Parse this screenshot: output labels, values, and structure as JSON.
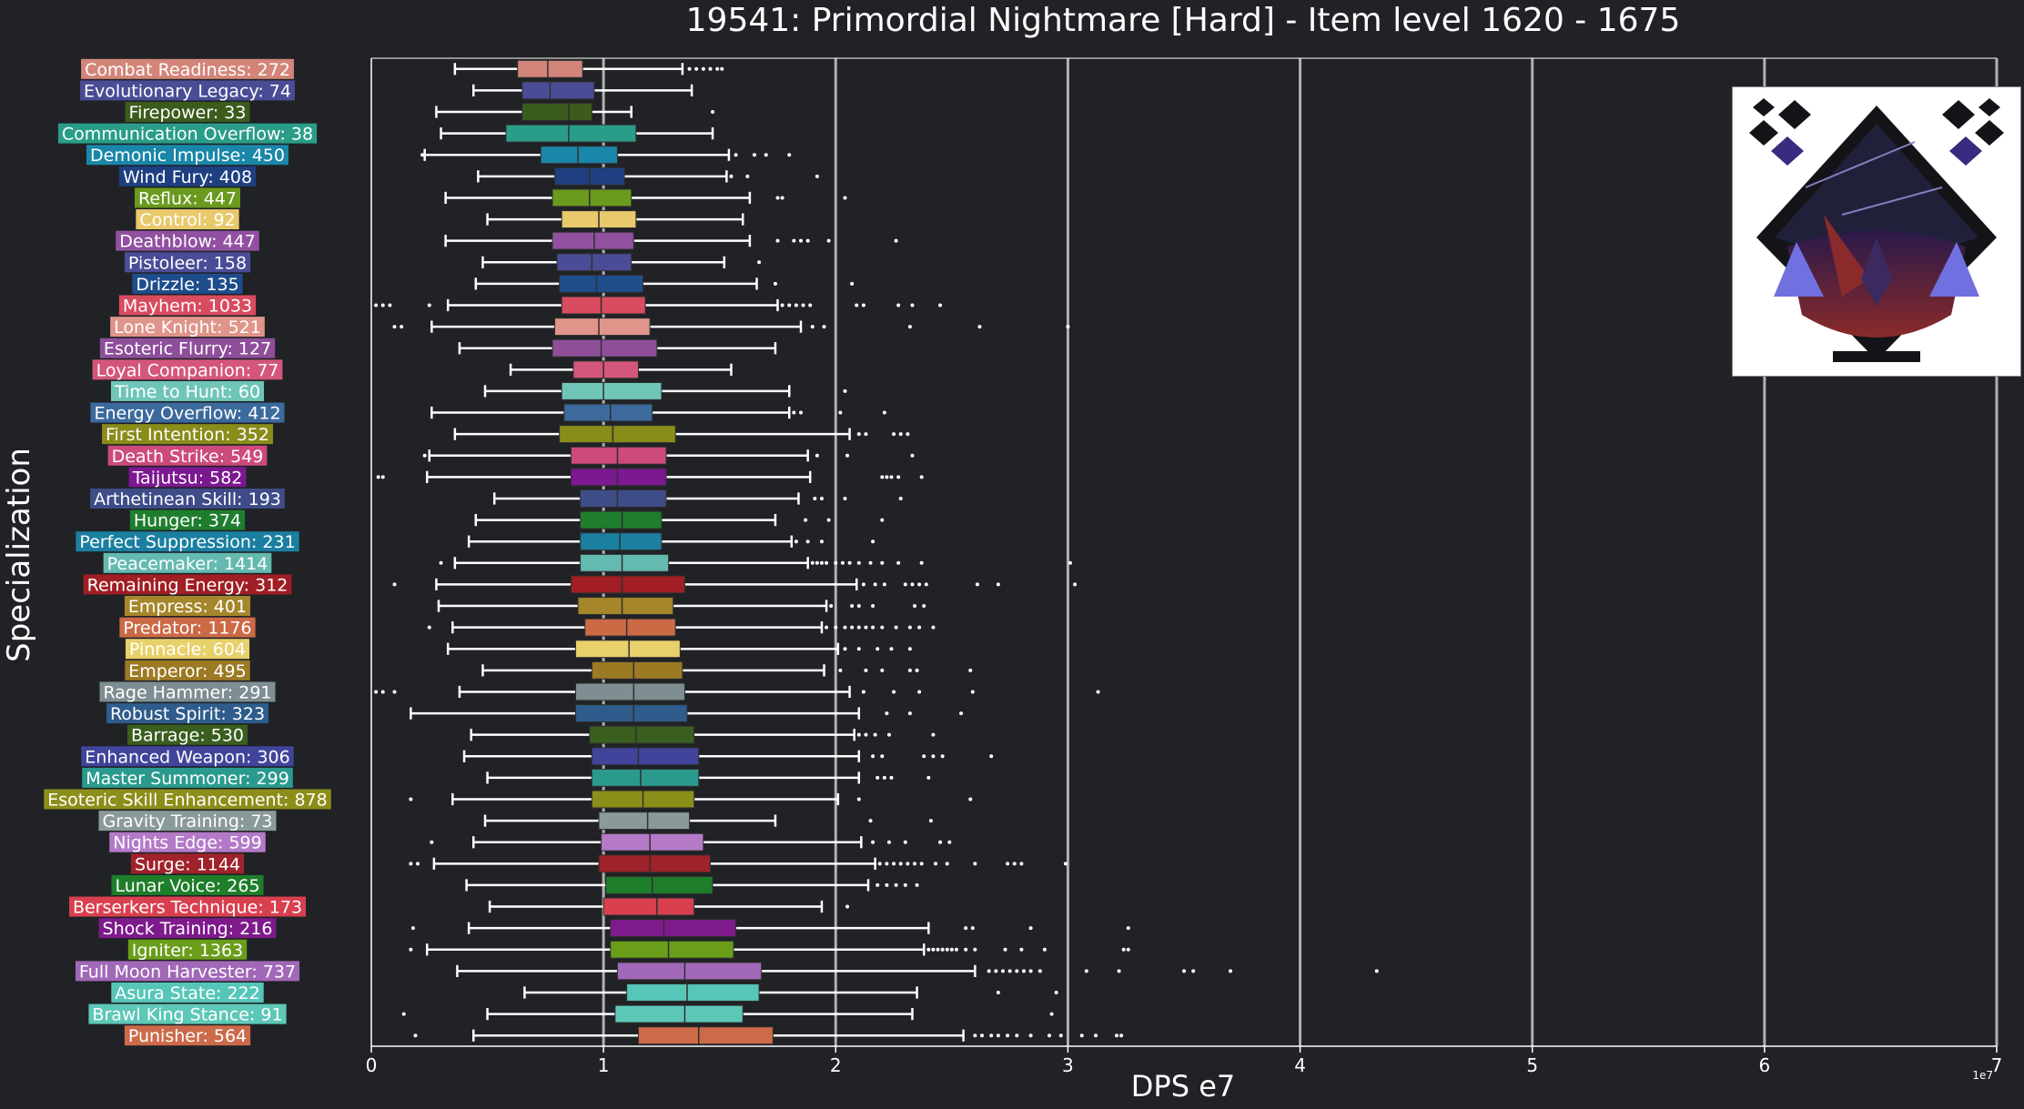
{
  "colors": {
    "background": "#202226",
    "axis": "#ffffff",
    "gridline": "#b0b0b0",
    "box_edge": "#303030",
    "whisker": "#ffffff",
    "median": "#303030"
  },
  "image": {
    "icon": "boss-portrait-icon"
  },
  "chart_data": {
    "type": "boxplot",
    "orientation": "horizontal",
    "title": "19541: Primordial Nightmare [Hard] - Item level 1620 - 1675",
    "xlabel": "DPS e7",
    "ylabel": "Specialization",
    "x_multiplier_label": "1e7",
    "xlim": [
      0,
      7
    ],
    "xticks": [
      "0",
      "1",
      "2",
      "3",
      "4",
      "5",
      "6",
      "7"
    ],
    "grid": "vertical major",
    "legend": "none",
    "series": [
      {
        "label": "Combat Readiness: 272",
        "color": "#d3857a",
        "whisker_low": 0.36,
        "q1": 0.63,
        "median": 0.76,
        "q3": 0.91,
        "whisker_high": 1.34,
        "outliers": [
          1.37,
          1.4,
          1.43,
          1.46,
          1.49,
          1.51
        ]
      },
      {
        "label": "Evolutionary Legacy: 74",
        "color": "#4a4c96",
        "whisker_low": 0.44,
        "q1": 0.65,
        "median": 0.77,
        "q3": 0.96,
        "whisker_high": 1.38,
        "outliers": []
      },
      {
        "label": "Firepower: 33",
        "color": "#3c5c1c",
        "whisker_low": 0.28,
        "q1": 0.65,
        "median": 0.85,
        "q3": 0.95,
        "whisker_high": 1.12,
        "outliers": [
          1.47
        ]
      },
      {
        "label": "Communication Overflow: 38",
        "color": "#2a9d8a",
        "whisker_low": 0.3,
        "q1": 0.58,
        "median": 0.85,
        "q3": 1.14,
        "whisker_high": 1.47,
        "outliers": []
      },
      {
        "label": "Demonic Impulse: 450",
        "color": "#1a87a8",
        "whisker_low": 0.23,
        "q1": 0.73,
        "median": 0.89,
        "q3": 1.06,
        "whisker_high": 1.54,
        "outliers": [
          0.22,
          1.57,
          1.65,
          1.7,
          1.8
        ]
      },
      {
        "label": "Wind Fury: 408",
        "color": "#1e3f80",
        "whisker_low": 0.46,
        "q1": 0.79,
        "median": 0.94,
        "q3": 1.09,
        "whisker_high": 1.53,
        "outliers": [
          1.55,
          1.62,
          1.92
        ]
      },
      {
        "label": "Reflux: 447",
        "color": "#6a9a1e",
        "whisker_low": 0.32,
        "q1": 0.78,
        "median": 0.94,
        "q3": 1.12,
        "whisker_high": 1.63,
        "outliers": [
          1.75,
          1.77,
          2.04
        ]
      },
      {
        "label": "Control: 92",
        "color": "#e8c96b",
        "whisker_low": 0.5,
        "q1": 0.82,
        "median": 0.98,
        "q3": 1.14,
        "whisker_high": 1.6,
        "outliers": []
      },
      {
        "label": "Deathblow: 447",
        "color": "#9150a0",
        "whisker_low": 0.32,
        "q1": 0.78,
        "median": 0.96,
        "q3": 1.13,
        "whisker_high": 1.63,
        "outliers": [
          1.75,
          1.82,
          1.85,
          1.88,
          1.97,
          2.26
        ]
      },
      {
        "label": "Pistoleer: 158",
        "color": "#4a4c96",
        "whisker_low": 0.48,
        "q1": 0.8,
        "median": 0.95,
        "q3": 1.12,
        "whisker_high": 1.52,
        "outliers": [
          1.67
        ]
      },
      {
        "label": "Drizzle: 135",
        "color": "#1e4d8c",
        "whisker_low": 0.45,
        "q1": 0.81,
        "median": 0.97,
        "q3": 1.17,
        "whisker_high": 1.66,
        "outliers": [
          1.74,
          2.07
        ]
      },
      {
        "label": "Mayhem: 1033",
        "color": "#d94b5e",
        "whisker_low": 0.33,
        "q1": 0.82,
        "median": 0.99,
        "q3": 1.18,
        "whisker_high": 1.75,
        "outliers": [
          0.02,
          0.05,
          0.08,
          0.25,
          1.77,
          1.8,
          1.83,
          1.86,
          1.89,
          2.09,
          2.12,
          2.27,
          2.33,
          2.45
        ]
      },
      {
        "label": "Lone Knight: 521",
        "color": "#e0958a",
        "whisker_low": 0.26,
        "q1": 0.79,
        "median": 0.98,
        "q3": 1.2,
        "whisker_high": 1.85,
        "outliers": [
          0.1,
          0.13,
          1.9,
          1.95,
          2.32,
          2.62,
          3.0
        ]
      },
      {
        "label": "Esoteric Flurry: 127",
        "color": "#8e4e9a",
        "whisker_low": 0.38,
        "q1": 0.78,
        "median": 0.99,
        "q3": 1.23,
        "whisker_high": 1.74,
        "outliers": []
      },
      {
        "label": "Loyal Companion: 77",
        "color": "#d4567a",
        "whisker_low": 0.6,
        "q1": 0.87,
        "median": 1.0,
        "q3": 1.15,
        "whisker_high": 1.55,
        "outliers": []
      },
      {
        "label": "Time to Hunt: 60",
        "color": "#6fc6b8",
        "whisker_low": 0.49,
        "q1": 0.82,
        "median": 1.0,
        "q3": 1.25,
        "whisker_high": 1.8,
        "outliers": [
          2.04
        ]
      },
      {
        "label": "Energy Overflow: 412",
        "color": "#3c6a9c",
        "whisker_low": 0.26,
        "q1": 0.83,
        "median": 1.03,
        "q3": 1.21,
        "whisker_high": 1.8,
        "outliers": [
          1.82,
          1.85,
          2.02,
          2.21
        ]
      },
      {
        "label": "First Intention: 352",
        "color": "#8a8c1a",
        "whisker_low": 0.36,
        "q1": 0.81,
        "median": 1.04,
        "q3": 1.31,
        "whisker_high": 2.06,
        "outliers": [
          2.1,
          2.13,
          2.25,
          2.28,
          2.31
        ]
      },
      {
        "label": "Death Strike: 549",
        "color": "#cc4a7c",
        "whisker_low": 0.25,
        "q1": 0.86,
        "median": 1.06,
        "q3": 1.27,
        "whisker_high": 1.88,
        "outliers": [
          0.23,
          1.92,
          2.05,
          2.33
        ]
      },
      {
        "label": "Taijutsu: 582",
        "color": "#7c1890",
        "whisker_low": 0.24,
        "q1": 0.86,
        "median": 1.06,
        "q3": 1.27,
        "whisker_high": 1.89,
        "outliers": [
          0.03,
          0.05,
          2.2,
          2.22,
          2.24,
          2.27,
          2.37
        ]
      },
      {
        "label": "Arthetinean Skill: 193",
        "color": "#3e4c88",
        "whisker_low": 0.53,
        "q1": 0.9,
        "median": 1.06,
        "q3": 1.27,
        "whisker_high": 1.84,
        "outliers": [
          1.91,
          1.94,
          2.04,
          2.28
        ]
      },
      {
        "label": "Hunger: 374",
        "color": "#1e7e2e",
        "whisker_low": 0.45,
        "q1": 0.9,
        "median": 1.08,
        "q3": 1.25,
        "whisker_high": 1.74,
        "outliers": [
          1.87,
          1.97,
          2.2
        ]
      },
      {
        "label": "Perfect Suppression: 231",
        "color": "#1a7fa0",
        "whisker_low": 0.42,
        "q1": 0.9,
        "median": 1.07,
        "q3": 1.25,
        "whisker_high": 1.81,
        "outliers": [
          1.83,
          1.88,
          1.94,
          2.16
        ]
      },
      {
        "label": "Peacemaker: 1414",
        "color": "#64bab0",
        "whisker_low": 0.36,
        "q1": 0.9,
        "median": 1.08,
        "q3": 1.28,
        "whisker_high": 1.88,
        "outliers": [
          0.3,
          1.9,
          1.92,
          1.94,
          1.96,
          2.0,
          2.03,
          2.06,
          2.1,
          2.15,
          2.2,
          2.27,
          2.37,
          3.01
        ]
      },
      {
        "label": "Remaining Energy: 312",
        "color": "#a01e24",
        "whisker_low": 0.28,
        "q1": 0.86,
        "median": 1.08,
        "q3": 1.35,
        "whisker_high": 2.09,
        "outliers": [
          0.1,
          2.12,
          2.17,
          2.21,
          2.3,
          2.33,
          2.36,
          2.39,
          2.61,
          2.7,
          3.03
        ]
      },
      {
        "label": "Empress: 401",
        "color": "#a6862a",
        "whisker_low": 0.29,
        "q1": 0.89,
        "median": 1.08,
        "q3": 1.3,
        "whisker_high": 1.96,
        "outliers": [
          1.98,
          2.07,
          2.1,
          2.16,
          2.34,
          2.38
        ]
      },
      {
        "label": "Predator: 1176",
        "color": "#cc6a46",
        "whisker_low": 0.35,
        "q1": 0.92,
        "median": 1.1,
        "q3": 1.31,
        "whisker_high": 1.94,
        "outliers": [
          0.25,
          1.96,
          2.0,
          2.04,
          2.07,
          2.1,
          2.13,
          2.16,
          2.2,
          2.26,
          2.32,
          2.36,
          2.42
        ]
      },
      {
        "label": "Pinnacle: 604",
        "color": "#e8d06a",
        "whisker_low": 0.33,
        "q1": 0.88,
        "median": 1.11,
        "q3": 1.33,
        "whisker_high": 2.01,
        "outliers": [
          2.04,
          2.1,
          2.18,
          2.24,
          2.32
        ]
      },
      {
        "label": "Emperor: 495",
        "color": "#9c7a24",
        "whisker_low": 0.48,
        "q1": 0.95,
        "median": 1.13,
        "q3": 1.34,
        "whisker_high": 1.95,
        "outliers": [
          2.02,
          2.13,
          2.2,
          2.32,
          2.35,
          2.58
        ]
      },
      {
        "label": "Rage Hammer: 291",
        "color": "#7e8e92",
        "whisker_low": 0.38,
        "q1": 0.88,
        "median": 1.13,
        "q3": 1.35,
        "whisker_high": 2.06,
        "outliers": [
          0.02,
          0.05,
          0.1,
          2.12,
          2.25,
          2.36,
          2.59,
          3.13
        ]
      },
      {
        "label": "Robust Spirit: 323",
        "color": "#2e5c8c",
        "whisker_low": 0.17,
        "q1": 0.88,
        "median": 1.13,
        "q3": 1.36,
        "whisker_high": 2.1,
        "outliers": [
          2.22,
          2.32,
          2.54
        ]
      },
      {
        "label": "Barrage: 530",
        "color": "#3a5e1e",
        "whisker_low": 0.43,
        "q1": 0.94,
        "median": 1.14,
        "q3": 1.39,
        "whisker_high": 2.08,
        "outliers": [
          2.1,
          2.13,
          2.17,
          2.23,
          2.42
        ]
      },
      {
        "label": "Enhanced Weapon: 306",
        "color": "#40449a",
        "whisker_low": 0.4,
        "q1": 0.95,
        "median": 1.15,
        "q3": 1.41,
        "whisker_high": 2.1,
        "outliers": [
          2.16,
          2.2,
          2.38,
          2.42,
          2.46,
          2.67
        ]
      },
      {
        "label": "Master Summoner: 299",
        "color": "#2a9a8e",
        "whisker_low": 0.5,
        "q1": 0.95,
        "median": 1.16,
        "q3": 1.41,
        "whisker_high": 2.1,
        "outliers": [
          2.18,
          2.21,
          2.24,
          2.4
        ]
      },
      {
        "label": "Esoteric Skill Enhancement: 878",
        "color": "#8c8e1a",
        "whisker_low": 0.35,
        "q1": 0.95,
        "median": 1.17,
        "q3": 1.39,
        "whisker_high": 2.01,
        "outliers": [
          0.17,
          2.1,
          2.58
        ]
      },
      {
        "label": "Gravity Training: 73",
        "color": "#8a9a9a",
        "whisker_low": 0.49,
        "q1": 0.98,
        "median": 1.19,
        "q3": 1.37,
        "whisker_high": 1.74,
        "outliers": [
          2.15,
          2.41
        ]
      },
      {
        "label": "Nights Edge: 599",
        "color": "#b47ac8",
        "whisker_low": 0.44,
        "q1": 0.99,
        "median": 1.2,
        "q3": 1.43,
        "whisker_high": 2.11,
        "outliers": [
          0.26,
          2.16,
          2.23,
          2.3,
          2.45,
          2.49
        ]
      },
      {
        "label": "Surge: 1144",
        "color": "#a0222a",
        "whisker_low": 0.27,
        "q1": 0.98,
        "median": 1.2,
        "q3": 1.46,
        "whisker_high": 2.17,
        "outliers": [
          0.17,
          0.2,
          2.19,
          2.22,
          2.25,
          2.28,
          2.31,
          2.34,
          2.37,
          2.43,
          2.48,
          2.6,
          2.74,
          2.77,
          2.8,
          2.99
        ]
      },
      {
        "label": "Lunar Voice: 265",
        "color": "#1e7e2a",
        "whisker_low": 0.41,
        "q1": 1.01,
        "median": 1.21,
        "q3": 1.47,
        "whisker_high": 2.14,
        "outliers": [
          2.18,
          2.22,
          2.26,
          2.3,
          2.35
        ]
      },
      {
        "label": "Berserkers Technique: 173",
        "color": "#d84050",
        "whisker_low": 0.51,
        "q1": 1.0,
        "median": 1.23,
        "q3": 1.39,
        "whisker_high": 1.94,
        "outliers": [
          2.05
        ]
      },
      {
        "label": "Shock Training: 216",
        "color": "#7e1a8c",
        "whisker_low": 0.42,
        "q1": 1.03,
        "median": 1.26,
        "q3": 1.57,
        "whisker_high": 2.4,
        "outliers": [
          0.18,
          2.56,
          2.59,
          2.84,
          3.26
        ]
      },
      {
        "label": "Igniter: 1363",
        "color": "#6a9e1a",
        "whisker_low": 0.24,
        "q1": 1.03,
        "median": 1.28,
        "q3": 1.56,
        "whisker_high": 2.38,
        "outliers": [
          0.17,
          2.4,
          2.42,
          2.44,
          2.46,
          2.48,
          2.5,
          2.52,
          2.56,
          2.6,
          2.73,
          2.8,
          2.9,
          3.24,
          3.26
        ]
      },
      {
        "label": "Full Moon Harvester: 737",
        "color": "#a268b8",
        "whisker_low": 0.37,
        "q1": 1.06,
        "median": 1.35,
        "q3": 1.68,
        "whisker_high": 2.6,
        "outliers": [
          2.66,
          2.69,
          2.72,
          2.75,
          2.78,
          2.81,
          2.84,
          2.88,
          3.08,
          3.22,
          3.5,
          3.54,
          3.7,
          4.33
        ]
      },
      {
        "label": "Asura State: 222",
        "color": "#56c6b8",
        "whisker_low": 0.66,
        "q1": 1.1,
        "median": 1.36,
        "q3": 1.67,
        "whisker_high": 2.35,
        "outliers": [
          2.7,
          2.95
        ]
      },
      {
        "label": "Brawl King Stance: 91",
        "color": "#5ec8b8",
        "whisker_low": 0.5,
        "q1": 1.05,
        "median": 1.35,
        "q3": 1.6,
        "whisker_high": 2.33,
        "outliers": [
          0.14,
          2.93
        ]
      },
      {
        "label": "Punisher: 564",
        "color": "#cc6a4a",
        "whisker_low": 0.44,
        "q1": 1.15,
        "median": 1.41,
        "q3": 1.73,
        "whisker_high": 2.55,
        "outliers": [
          0.19,
          2.6,
          2.63,
          2.67,
          2.7,
          2.74,
          2.78,
          2.84,
          2.92,
          2.97,
          3.06,
          3.12,
          3.21,
          3.23
        ]
      }
    ]
  }
}
